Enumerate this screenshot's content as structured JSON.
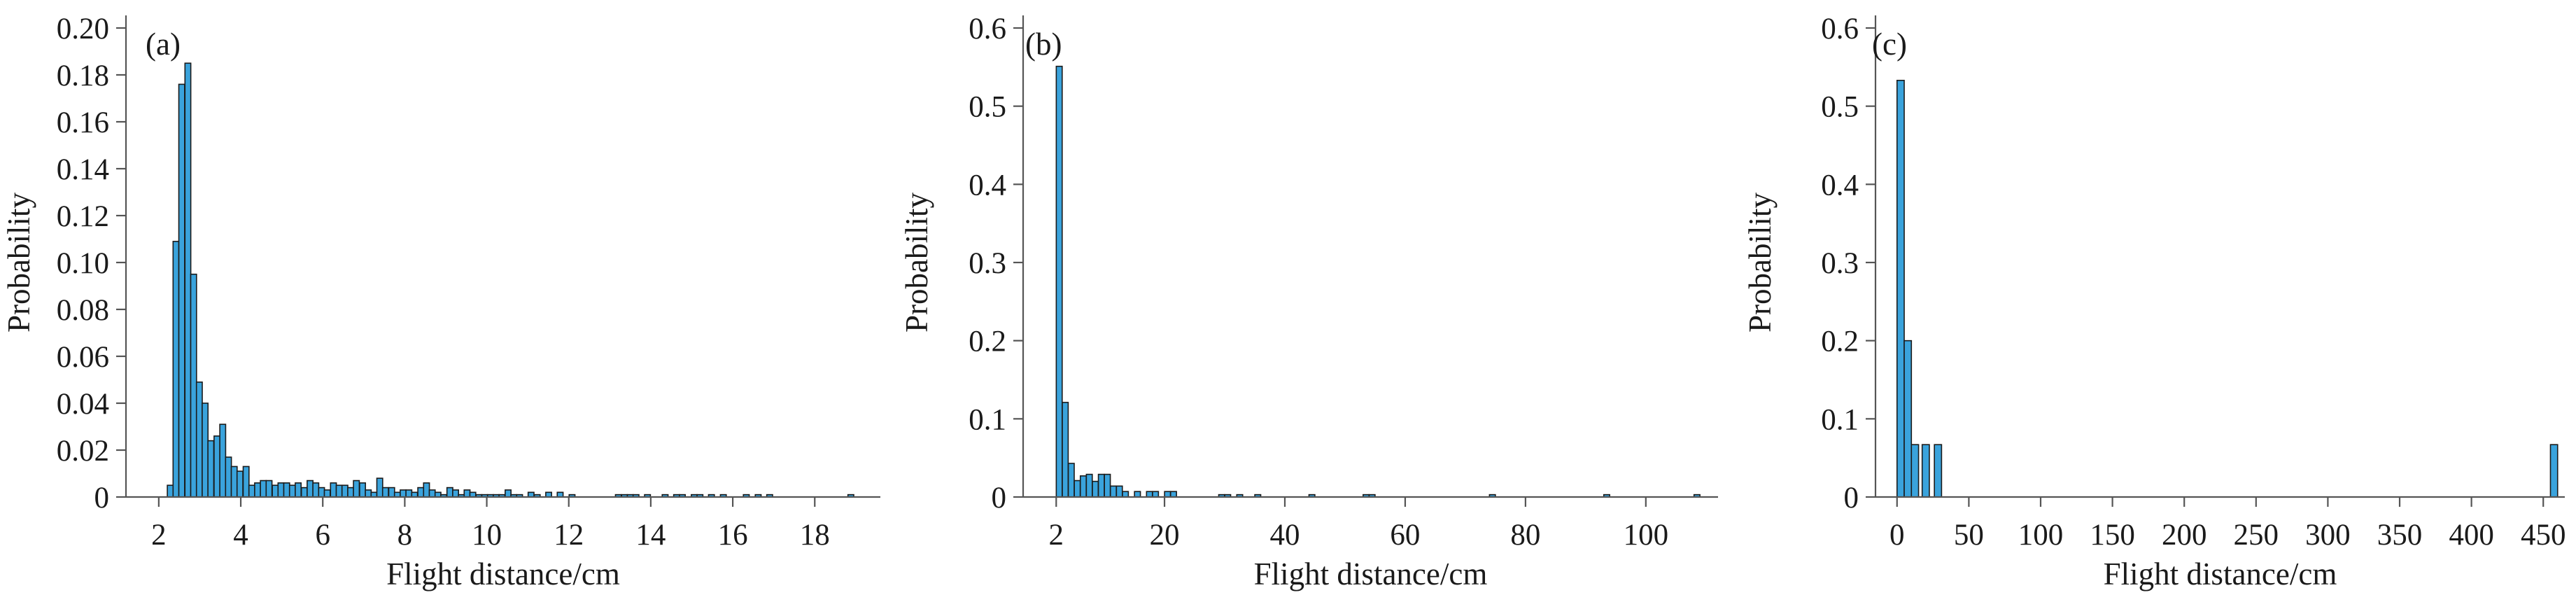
{
  "colors": {
    "bar": "#3aa3dc",
    "bar_edge": "#1b1b1b",
    "axis": "#555555",
    "text": "#1a1a1a"
  },
  "chart_data": [
    {
      "type": "bar",
      "panel_label": "(a)",
      "xlabel": "Flight distance/cm",
      "ylabel": "Probability",
      "xlim": [
        1.2,
        19.6
      ],
      "ylim": [
        0,
        0.2
      ],
      "xticks": [
        2,
        4,
        6,
        8,
        10,
        12,
        14,
        16,
        18
      ],
      "yticks": [
        "0",
        "0.02",
        "0.04",
        "0.06",
        "0.08",
        "0.10",
        "0.12",
        "0.14",
        "0.16",
        "0.18",
        "0.20"
      ],
      "bin_width": 0.142,
      "bin_centers": [
        2.28,
        2.42,
        2.56,
        2.71,
        2.85,
        2.99,
        3.13,
        3.27,
        3.42,
        3.56,
        3.7,
        3.84,
        3.98,
        4.13,
        4.27,
        4.41,
        4.55,
        4.69,
        4.84,
        4.98,
        5.12,
        5.26,
        5.4,
        5.55,
        5.69,
        5.83,
        5.97,
        6.11,
        6.26,
        6.4,
        6.54,
        6.68,
        6.82,
        6.97,
        7.11,
        7.25,
        7.39,
        7.53,
        7.68,
        7.82,
        7.96,
        8.1,
        8.24,
        8.39,
        8.53,
        8.67,
        8.81,
        8.95,
        9.1,
        9.24,
        9.38,
        9.52,
        9.66,
        9.81,
        9.95,
        10.09,
        10.23,
        10.37,
        10.52,
        10.66,
        10.8,
        11.08,
        11.23,
        11.51,
        11.79,
        12.08,
        13.21,
        13.36,
        13.5,
        13.64,
        13.92,
        14.35,
        14.63,
        14.77,
        15.06,
        15.2,
        15.48,
        15.77,
        16.33,
        16.62,
        16.9,
        18.88
      ],
      "values": [
        0.005,
        0.109,
        0.176,
        0.185,
        0.095,
        0.049,
        0.04,
        0.024,
        0.026,
        0.031,
        0.017,
        0.013,
        0.011,
        0.013,
        0.005,
        0.006,
        0.007,
        0.007,
        0.005,
        0.006,
        0.006,
        0.005,
        0.006,
        0.004,
        0.007,
        0.006,
        0.004,
        0.003,
        0.006,
        0.005,
        0.005,
        0.004,
        0.007,
        0.006,
        0.003,
        0.002,
        0.008,
        0.004,
        0.004,
        0.002,
        0.003,
        0.003,
        0.002,
        0.004,
        0.006,
        0.003,
        0.002,
        0.001,
        0.004,
        0.003,
        0.001,
        0.003,
        0.002,
        0.001,
        0.001,
        0.001,
        0.001,
        0.001,
        0.003,
        0.001,
        0.001,
        0.002,
        0.001,
        0.002,
        0.002,
        0.001,
        0.001,
        0.001,
        0.001,
        0.001,
        0.001,
        0.001,
        0.001,
        0.001,
        0.001,
        0.001,
        0.001,
        0.001,
        0.001,
        0.001,
        0.001,
        0.001
      ]
    },
    {
      "type": "bar",
      "panel_label": "(b)",
      "xlabel": "Flight distance/cm",
      "ylabel": "Probability",
      "xlim": [
        -3.5,
        112
      ],
      "ylim": [
        0,
        0.6
      ],
      "xticks": [
        20,
        40,
        60,
        80,
        100,
        2
      ],
      "yticks": [
        "0",
        "0.1",
        "0.2",
        "0.3",
        "0.4",
        "0.5",
        "0.6"
      ],
      "bin_width": 0.98,
      "bin_centers": [
        2.5,
        3.5,
        4.5,
        5.5,
        6.5,
        7.5,
        8.5,
        9.5,
        10.5,
        11.5,
        12.5,
        13.5,
        15.5,
        17.5,
        18.5,
        20.5,
        21.5,
        29.5,
        30.5,
        32.5,
        35.5,
        44.5,
        53.5,
        54.5,
        74.5,
        93.5,
        108.5
      ],
      "values": [
        0.551,
        0.121,
        0.043,
        0.021,
        0.027,
        0.029,
        0.02,
        0.029,
        0.029,
        0.014,
        0.014,
        0.007,
        0.007,
        0.007,
        0.007,
        0.007,
        0.007,
        0.003,
        0.003,
        0.003,
        0.003,
        0.003,
        0.003,
        0.003,
        0.003,
        0.003,
        0.003
      ]
    },
    {
      "type": "bar",
      "panel_label": "(c)",
      "xlabel": "Flight distance/cm",
      "ylabel": "Probability",
      "xlim": [
        -15,
        465
      ],
      "ylim": [
        0,
        0.6
      ],
      "xticks": [
        0,
        50,
        100,
        150,
        200,
        250,
        300,
        350,
        400,
        450
      ],
      "yticks": [
        "0",
        "0.1",
        "0.2",
        "0.3",
        "0.4",
        "0.5",
        "0.6"
      ],
      "bin_width": 5.0,
      "bin_centers": [
        2.5,
        7.5,
        12.5,
        20.0,
        28.5,
        457.5
      ],
      "values": [
        0.533,
        0.2,
        0.067,
        0.067,
        0.067,
        0.067
      ]
    }
  ]
}
